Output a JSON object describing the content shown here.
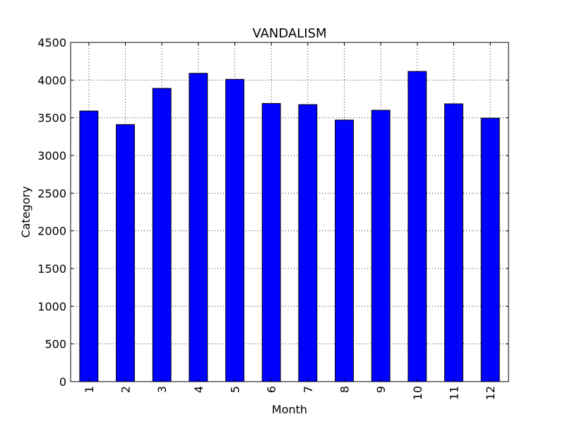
{
  "chart_data": {
    "type": "bar",
    "title": "VANDALISM",
    "xlabel": "Month",
    "ylabel": "Category",
    "categories": [
      "1",
      "2",
      "3",
      "4",
      "5",
      "6",
      "7",
      "8",
      "9",
      "10",
      "11",
      "12"
    ],
    "values": [
      3590,
      3410,
      3890,
      4090,
      4010,
      3690,
      3675,
      3470,
      3600,
      4115,
      3685,
      3495
    ],
    "ylim": [
      0,
      4500
    ],
    "yticks": [
      0,
      500,
      1000,
      1500,
      2000,
      2500,
      3000,
      3500,
      4000,
      4500
    ],
    "grid": true,
    "bar_color": "#0000ff",
    "edge_color": "#000000"
  }
}
